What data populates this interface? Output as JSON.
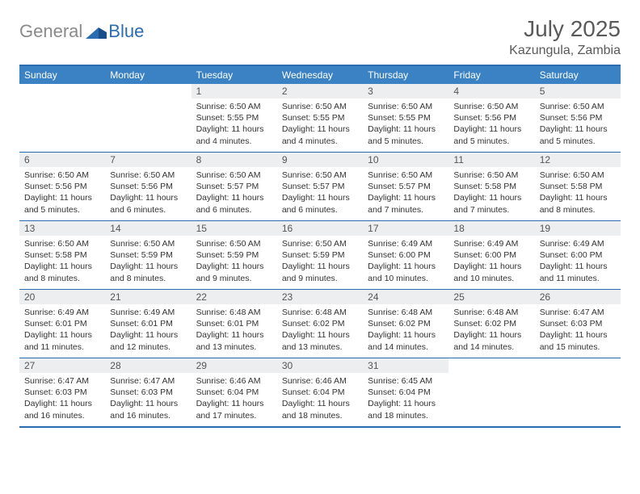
{
  "brand": {
    "part1": "General",
    "part2": "Blue"
  },
  "title": "July 2025",
  "location": "Kazungula, Zambia",
  "colors": {
    "header_bg": "#3b82c4",
    "border": "#2b6cb0",
    "daynum_bg": "#eceeef",
    "text": "#333333",
    "title_text": "#5a5a5a"
  },
  "day_names": [
    "Sunday",
    "Monday",
    "Tuesday",
    "Wednesday",
    "Thursday",
    "Friday",
    "Saturday"
  ],
  "weeks": [
    [
      null,
      null,
      {
        "n": "1",
        "sr": "Sunrise: 6:50 AM",
        "ss": "Sunset: 5:55 PM",
        "dl": "Daylight: 11 hours and 4 minutes."
      },
      {
        "n": "2",
        "sr": "Sunrise: 6:50 AM",
        "ss": "Sunset: 5:55 PM",
        "dl": "Daylight: 11 hours and 4 minutes."
      },
      {
        "n": "3",
        "sr": "Sunrise: 6:50 AM",
        "ss": "Sunset: 5:55 PM",
        "dl": "Daylight: 11 hours and 5 minutes."
      },
      {
        "n": "4",
        "sr": "Sunrise: 6:50 AM",
        "ss": "Sunset: 5:56 PM",
        "dl": "Daylight: 11 hours and 5 minutes."
      },
      {
        "n": "5",
        "sr": "Sunrise: 6:50 AM",
        "ss": "Sunset: 5:56 PM",
        "dl": "Daylight: 11 hours and 5 minutes."
      }
    ],
    [
      {
        "n": "6",
        "sr": "Sunrise: 6:50 AM",
        "ss": "Sunset: 5:56 PM",
        "dl": "Daylight: 11 hours and 5 minutes."
      },
      {
        "n": "7",
        "sr": "Sunrise: 6:50 AM",
        "ss": "Sunset: 5:56 PM",
        "dl": "Daylight: 11 hours and 6 minutes."
      },
      {
        "n": "8",
        "sr": "Sunrise: 6:50 AM",
        "ss": "Sunset: 5:57 PM",
        "dl": "Daylight: 11 hours and 6 minutes."
      },
      {
        "n": "9",
        "sr": "Sunrise: 6:50 AM",
        "ss": "Sunset: 5:57 PM",
        "dl": "Daylight: 11 hours and 6 minutes."
      },
      {
        "n": "10",
        "sr": "Sunrise: 6:50 AM",
        "ss": "Sunset: 5:57 PM",
        "dl": "Daylight: 11 hours and 7 minutes."
      },
      {
        "n": "11",
        "sr": "Sunrise: 6:50 AM",
        "ss": "Sunset: 5:58 PM",
        "dl": "Daylight: 11 hours and 7 minutes."
      },
      {
        "n": "12",
        "sr": "Sunrise: 6:50 AM",
        "ss": "Sunset: 5:58 PM",
        "dl": "Daylight: 11 hours and 8 minutes."
      }
    ],
    [
      {
        "n": "13",
        "sr": "Sunrise: 6:50 AM",
        "ss": "Sunset: 5:58 PM",
        "dl": "Daylight: 11 hours and 8 minutes."
      },
      {
        "n": "14",
        "sr": "Sunrise: 6:50 AM",
        "ss": "Sunset: 5:59 PM",
        "dl": "Daylight: 11 hours and 8 minutes."
      },
      {
        "n": "15",
        "sr": "Sunrise: 6:50 AM",
        "ss": "Sunset: 5:59 PM",
        "dl": "Daylight: 11 hours and 9 minutes."
      },
      {
        "n": "16",
        "sr": "Sunrise: 6:50 AM",
        "ss": "Sunset: 5:59 PM",
        "dl": "Daylight: 11 hours and 9 minutes."
      },
      {
        "n": "17",
        "sr": "Sunrise: 6:49 AM",
        "ss": "Sunset: 6:00 PM",
        "dl": "Daylight: 11 hours and 10 minutes."
      },
      {
        "n": "18",
        "sr": "Sunrise: 6:49 AM",
        "ss": "Sunset: 6:00 PM",
        "dl": "Daylight: 11 hours and 10 minutes."
      },
      {
        "n": "19",
        "sr": "Sunrise: 6:49 AM",
        "ss": "Sunset: 6:00 PM",
        "dl": "Daylight: 11 hours and 11 minutes."
      }
    ],
    [
      {
        "n": "20",
        "sr": "Sunrise: 6:49 AM",
        "ss": "Sunset: 6:01 PM",
        "dl": "Daylight: 11 hours and 11 minutes."
      },
      {
        "n": "21",
        "sr": "Sunrise: 6:49 AM",
        "ss": "Sunset: 6:01 PM",
        "dl": "Daylight: 11 hours and 12 minutes."
      },
      {
        "n": "22",
        "sr": "Sunrise: 6:48 AM",
        "ss": "Sunset: 6:01 PM",
        "dl": "Daylight: 11 hours and 13 minutes."
      },
      {
        "n": "23",
        "sr": "Sunrise: 6:48 AM",
        "ss": "Sunset: 6:02 PM",
        "dl": "Daylight: 11 hours and 13 minutes."
      },
      {
        "n": "24",
        "sr": "Sunrise: 6:48 AM",
        "ss": "Sunset: 6:02 PM",
        "dl": "Daylight: 11 hours and 14 minutes."
      },
      {
        "n": "25",
        "sr": "Sunrise: 6:48 AM",
        "ss": "Sunset: 6:02 PM",
        "dl": "Daylight: 11 hours and 14 minutes."
      },
      {
        "n": "26",
        "sr": "Sunrise: 6:47 AM",
        "ss": "Sunset: 6:03 PM",
        "dl": "Daylight: 11 hours and 15 minutes."
      }
    ],
    [
      {
        "n": "27",
        "sr": "Sunrise: 6:47 AM",
        "ss": "Sunset: 6:03 PM",
        "dl": "Daylight: 11 hours and 16 minutes."
      },
      {
        "n": "28",
        "sr": "Sunrise: 6:47 AM",
        "ss": "Sunset: 6:03 PM",
        "dl": "Daylight: 11 hours and 16 minutes."
      },
      {
        "n": "29",
        "sr": "Sunrise: 6:46 AM",
        "ss": "Sunset: 6:04 PM",
        "dl": "Daylight: 11 hours and 17 minutes."
      },
      {
        "n": "30",
        "sr": "Sunrise: 6:46 AM",
        "ss": "Sunset: 6:04 PM",
        "dl": "Daylight: 11 hours and 18 minutes."
      },
      {
        "n": "31",
        "sr": "Sunrise: 6:45 AM",
        "ss": "Sunset: 6:04 PM",
        "dl": "Daylight: 11 hours and 18 minutes."
      },
      null,
      null
    ]
  ]
}
